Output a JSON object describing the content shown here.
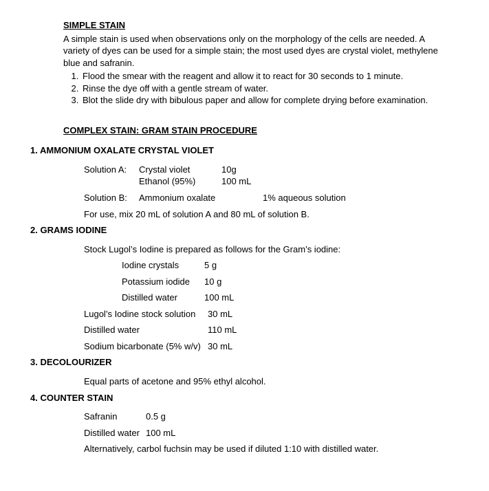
{
  "simple": {
    "title": "SIMPLE STAIN",
    "p1": "A simple stain is used when observations only on the morphology of the cells are needed. A variety of dyes can be used for a simple stain; the most used dyes are crystal violet, methylene blue and safranin.",
    "steps": [
      "Flood the smear with the reagent and allow it to react for 30 seconds to 1 minute.",
      "Rinse the dye off with a gentle stream of water.",
      "Blot the slide dry with bibulous paper and allow for complete drying before examination."
    ]
  },
  "complex": {
    "title": "COMPLEX STAIN: GRAM STAIN PROCEDURE",
    "s1": {
      "num": "1.",
      "heading": "AMMONIUM OXALATE CRYSTAL VIOLET",
      "solA_label": "Solution A:",
      "solA_item1": "Crystal violet",
      "solA_qty1": "10g",
      "solA_item2": "Ethanol (95%)",
      "solA_qty2": "100 mL",
      "solB_label": "Solution B:",
      "solB_item": "Ammonium oxalate",
      "solB_qty": "1% aqueous solution",
      "mix": "For use, mix 20 mL of solution A and 80 mL of solution B."
    },
    "s2": {
      "num": "2.",
      "heading": "GRAMS IODINE",
      "intro": "Stock Lugol’s Iodine is prepared as follows for the Gram’s iodine:",
      "r1_item": "Iodine crystals",
      "r1_qty": "5 g",
      "r2_item": "Potassium iodide",
      "r2_qty": "10 g",
      "r3_item": "Distilled water",
      "r3_qty": "100 mL",
      "r4_item": "Lugol’s Iodine stock solution",
      "r4_qty": "30 mL",
      "r5_item": "Distilled water",
      "r5_qty": "110 mL",
      "r6_item": "Sodium bicarbonate (5% w/v)",
      "r6_qty": "30 mL"
    },
    "s3": {
      "num": "3.",
      "heading": "DECOLOURIZER",
      "text": "Equal parts of acetone and 95% ethyl alcohol."
    },
    "s4": {
      "num": "4.",
      "heading": "COUNTER STAIN",
      "r1_item": "Safranin",
      "r1_qty": "0.5 g",
      "r2_item": "Distilled water",
      "r2_qty": "100 mL",
      "alt": "Alternatively, carbol fuchsin may be used if diluted 1:10 with distilled water."
    }
  }
}
